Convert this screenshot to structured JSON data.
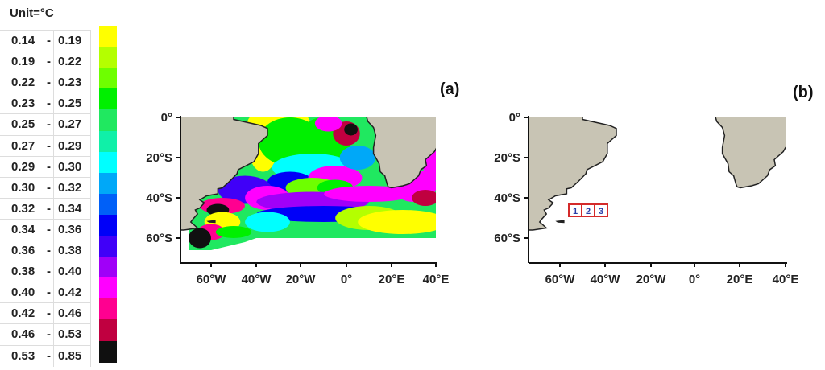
{
  "legend": {
    "unit": "Unit=°C",
    "items": [
      {
        "lo": "0.14",
        "hi": "0.19",
        "color": "#ffff00"
      },
      {
        "lo": "0.19",
        "hi": "0.22",
        "color": "#b4ff00"
      },
      {
        "lo": "0.22",
        "hi": "0.23",
        "color": "#6eff00"
      },
      {
        "lo": "0.23",
        "hi": "0.25",
        "color": "#00f000"
      },
      {
        "lo": "0.25",
        "hi": "0.27",
        "color": "#20e860"
      },
      {
        "lo": "0.27",
        "hi": "0.29",
        "color": "#10f0a8"
      },
      {
        "lo": "0.29",
        "hi": "0.30",
        "color": "#00ffff"
      },
      {
        "lo": "0.30",
        "hi": "0.32",
        "color": "#00a8f8"
      },
      {
        "lo": "0.32",
        "hi": "0.34",
        "color": "#0060f8"
      },
      {
        "lo": "0.34",
        "hi": "0.36",
        "color": "#0000f8"
      },
      {
        "lo": "0.36",
        "hi": "0.38",
        "color": "#4000f8"
      },
      {
        "lo": "0.38",
        "hi": "0.40",
        "color": "#a000f8"
      },
      {
        "lo": "0.40",
        "hi": "0.42",
        "color": "#ff00ff"
      },
      {
        "lo": "0.42",
        "hi": "0.46",
        "color": "#ff0090"
      },
      {
        "lo": "0.46",
        "hi": "0.53",
        "color": "#c00040"
      },
      {
        "lo": "0.53",
        "hi": "0.85",
        "color": "#101010"
      }
    ]
  },
  "panels": {
    "a": {
      "label": "(a)"
    },
    "b": {
      "label": "(b)",
      "boxes": [
        "1",
        "2",
        "3"
      ]
    }
  },
  "axes": {
    "lat_ticks": [
      "0°",
      "20°S",
      "40°S",
      "60°S"
    ],
    "lon_ticks": [
      "60°W",
      "40°W",
      "20°W",
      "0°",
      "20°E",
      "40°E"
    ]
  },
  "colors": {
    "land": "#c8c4b4",
    "coast": "#222222",
    "box": "#d42a2a"
  }
}
